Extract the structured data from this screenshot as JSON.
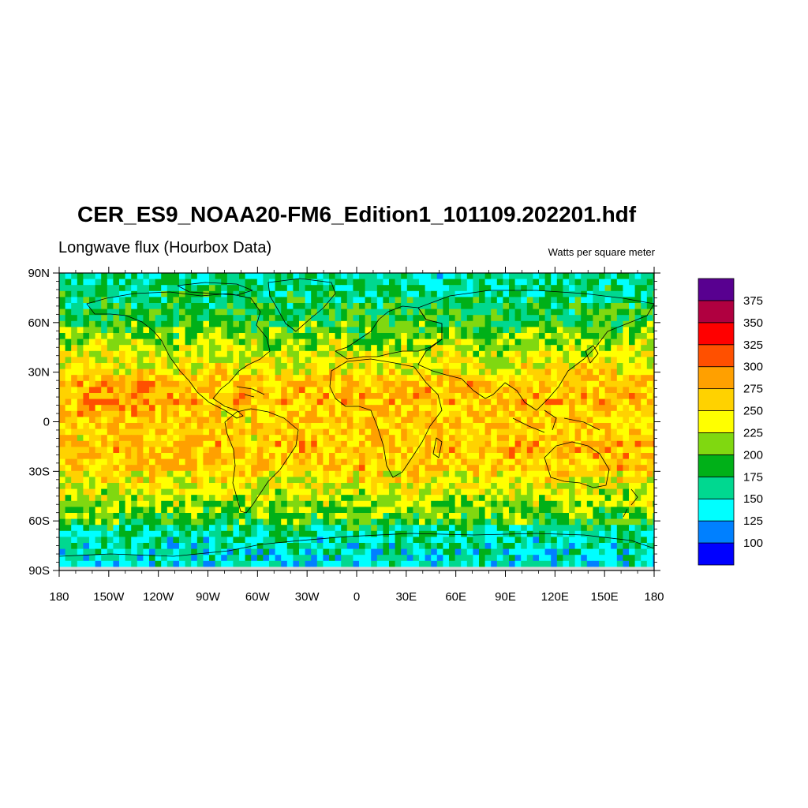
{
  "title": "CER_ES9_NOAA20-FM6_Edition1_101109.202201.hdf",
  "subtitle": "Longwave flux (Hourbox Data)",
  "units": "Watts per square meter",
  "axes": {
    "lat_ticks": [
      {
        "value": 90,
        "label": "90N"
      },
      {
        "value": 60,
        "label": "60N"
      },
      {
        "value": 30,
        "label": "30N"
      },
      {
        "value": 0,
        "label": "0"
      },
      {
        "value": -30,
        "label": "30S"
      },
      {
        "value": -60,
        "label": "60S"
      },
      {
        "value": -90,
        "label": "90S"
      }
    ],
    "lon_ticks": [
      {
        "value": -180,
        "label": "180"
      },
      {
        "value": -150,
        "label": "150W"
      },
      {
        "value": -120,
        "label": "120W"
      },
      {
        "value": -90,
        "label": "90W"
      },
      {
        "value": -60,
        "label": "60W"
      },
      {
        "value": -30,
        "label": "30W"
      },
      {
        "value": 0,
        "label": "0"
      },
      {
        "value": 30,
        "label": "30E"
      },
      {
        "value": 60,
        "label": "60E"
      },
      {
        "value": 90,
        "label": "90E"
      },
      {
        "value": 120,
        "label": "120E"
      },
      {
        "value": 150,
        "label": "150E"
      },
      {
        "value": 180,
        "label": "180"
      }
    ]
  },
  "colorbar": {
    "colors": [
      "#0000ff",
      "#0080ff",
      "#00ffff",
      "#00d890",
      "#00b018",
      "#80d810",
      "#ffff00",
      "#ffd200",
      "#ffa000",
      "#ff5000",
      "#ff0000",
      "#b00040",
      "#580090"
    ],
    "labels": [
      "100",
      "125",
      "150",
      "175",
      "200",
      "225",
      "250",
      "275",
      "300",
      "325",
      "350",
      "375"
    ]
  },
  "missing_color": "#d8d8d8",
  "coastline_color": "#000000"
}
